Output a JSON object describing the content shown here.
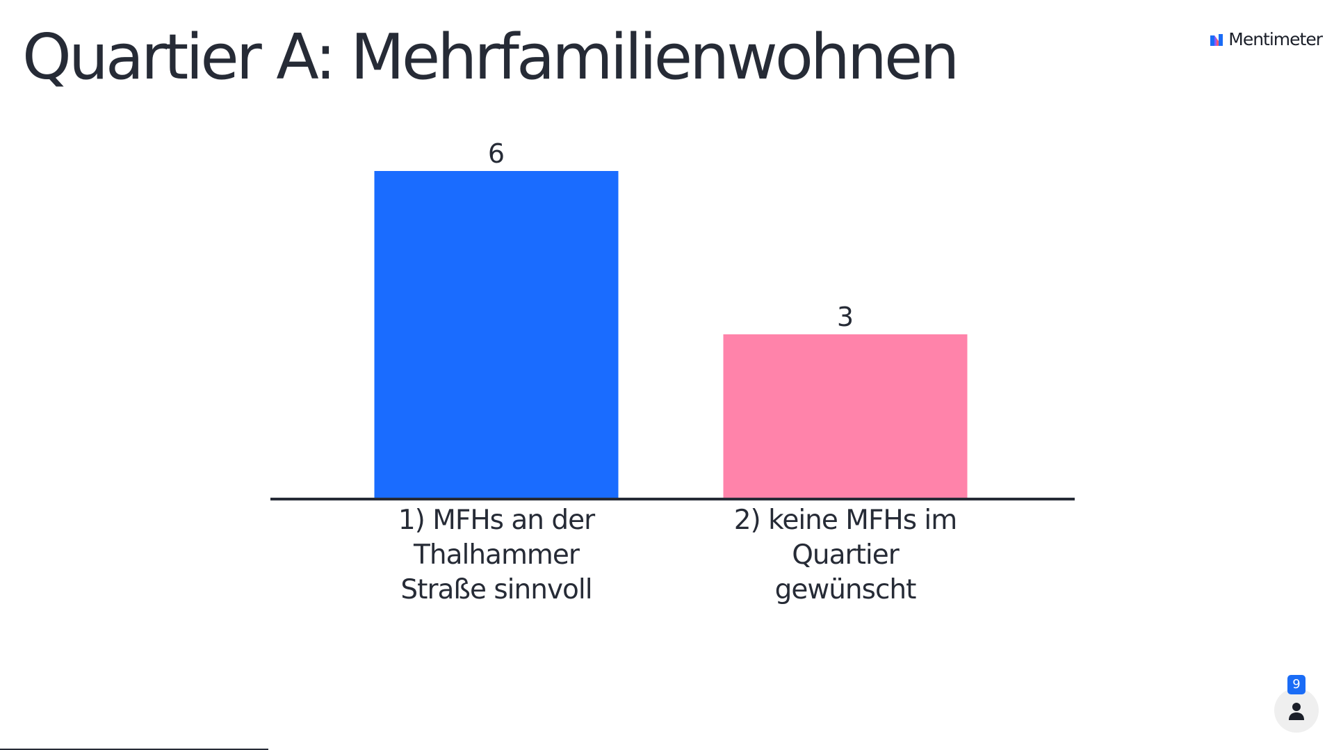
{
  "title": "Quartier A: Mehrfamilienwohnen",
  "brand": {
    "name": "Mentimeter",
    "icon": "mentimeter-logo-icon"
  },
  "participants": {
    "count": "9",
    "icon": "person-icon"
  },
  "chart_data": {
    "type": "bar",
    "categories": [
      "1) MFHs an der Thalhammer Straße sinnvoll",
      "2) keine MFHs im Quartier gewünscht"
    ],
    "category_lines": [
      [
        "1) MFHs an der",
        "Thalhammer",
        "Straße sinnvoll"
      ],
      [
        "2) keine MFHs im",
        "Quartier",
        "gewünscht"
      ]
    ],
    "values": [
      6,
      3
    ],
    "value_labels": [
      "6",
      "3"
    ],
    "colors": [
      "#1a6cff",
      "#ff83aa"
    ],
    "ylim": [
      0,
      6
    ],
    "grid": false,
    "legend": "none",
    "title": "",
    "xlabel": "",
    "ylabel": ""
  }
}
